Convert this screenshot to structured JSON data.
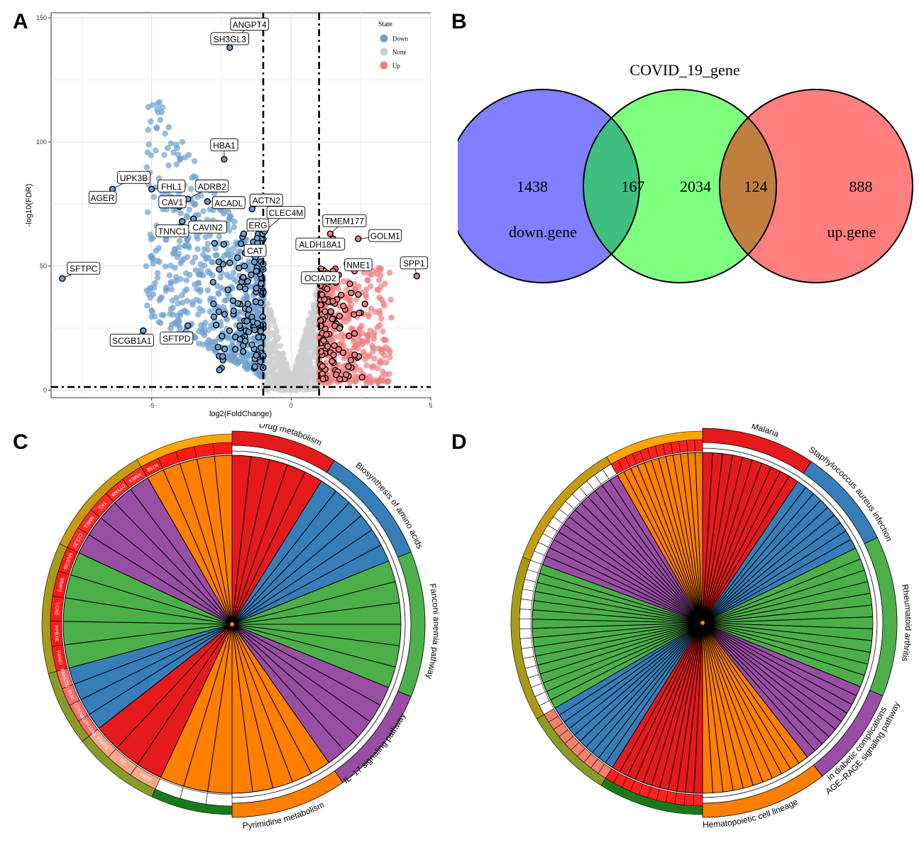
{
  "panel_labels": [
    "A",
    "B",
    "C",
    "D"
  ],
  "chart_data": [
    {
      "type": "scatter",
      "panel": "A",
      "xlabel": "log2(FoldChange)",
      "ylabel": "-log10(FDR)",
      "xlim": [
        -8.6,
        5.0
      ],
      "ylim": [
        -3,
        152
      ],
      "xticks": [
        -5,
        0,
        5
      ],
      "yticks": [
        0,
        50,
        100,
        150
      ],
      "grid": true,
      "thresholds": {
        "x": [
          -1,
          1
        ],
        "y": 1.3
      },
      "legend": {
        "title": "State",
        "position": "top-right",
        "entries": [
          {
            "name": "Down",
            "color": "#6f9fcf"
          },
          {
            "name": "None",
            "color": "#cfcfcf"
          },
          {
            "name": "Up",
            "color": "#ee7f7f"
          }
        ]
      },
      "labeled_genes": [
        {
          "name": "ANGPT4",
          "x": -2.0,
          "y": 141
        },
        {
          "name": "SH3GL3",
          "x": -2.2,
          "y": 138
        },
        {
          "name": "HBA1",
          "x": -2.4,
          "y": 93
        },
        {
          "name": "UPK3B",
          "x": -6.4,
          "y": 81
        },
        {
          "name": "AGER",
          "x": -6.4,
          "y": 81
        },
        {
          "name": "FHL1",
          "x": -5.0,
          "y": 81
        },
        {
          "name": "ADRB2",
          "x": -3.7,
          "y": 77
        },
        {
          "name": "ACTN2",
          "x": -1.4,
          "y": 73
        },
        {
          "name": "ACADL",
          "x": -3.0,
          "y": 76
        },
        {
          "name": "CAV1",
          "x": -4.0,
          "y": 74
        },
        {
          "name": "CLEC4M",
          "x": -0.95,
          "y": 64
        },
        {
          "name": "TNNC1",
          "x": -3.9,
          "y": 68
        },
        {
          "name": "CAVIN2",
          "x": -3.5,
          "y": 69
        },
        {
          "name": "ERG",
          "x": -1.7,
          "y": 63
        },
        {
          "name": "CAT",
          "x": -1.8,
          "y": 59
        },
        {
          "name": "TMEM177",
          "x": 1.4,
          "y": 63
        },
        {
          "name": "GOLM1",
          "x": 2.4,
          "y": 61
        },
        {
          "name": "ALDH18A1",
          "x": 1.5,
          "y": 61
        },
        {
          "name": "NME1",
          "x": 2.0,
          "y": 51
        },
        {
          "name": "OCIAD2",
          "x": 1.5,
          "y": 48
        },
        {
          "name": "SPP1",
          "x": 4.5,
          "y": 46
        },
        {
          "name": "SFTPC",
          "x": -8.2,
          "y": 45
        },
        {
          "name": "SCGB1A1",
          "x": -5.3,
          "y": 24
        },
        {
          "name": "SFTPD",
          "x": -3.7,
          "y": 26
        }
      ]
    },
    {
      "type": "venn",
      "panel": "B",
      "title": "COVID_19_gene",
      "sets": [
        {
          "name": "down.gene",
          "color": "#7f7fff"
        },
        {
          "name": "COVID_19_gene",
          "color": "#7fff7f"
        },
        {
          "name": "up.gene",
          "color": "#ff7f7f"
        }
      ],
      "regions": [
        {
          "label": "1438",
          "sets": [
            "down.gene"
          ]
        },
        {
          "label": "167",
          "sets": [
            "down.gene",
            "COVID_19_gene"
          ]
        },
        {
          "label": "2034",
          "sets": [
            "COVID_19_gene"
          ]
        },
        {
          "label": "124",
          "sets": [
            "COVID_19_gene",
            "up.gene"
          ]
        },
        {
          "label": "888",
          "sets": [
            "up.gene"
          ]
        }
      ],
      "intersection_colors": [
        "#3fbf7f",
        "#bf7f3f"
      ]
    },
    {
      "type": "chord",
      "panel": "C",
      "pathways": [
        {
          "name": "Drug metabolism",
          "color": "#e41a1c"
        },
        {
          "name": "Biosynthesis of amino acids",
          "color": "#377eb8"
        },
        {
          "name": "Fanconi anemia pathway",
          "color": "#4daf4a"
        },
        {
          "name": "IL−17 signaling pathway",
          "color": "#984ea3"
        },
        {
          "name": "Pyrimidine metabolism",
          "color": "#ff7f00"
        }
      ],
      "genes": [
        "NME4",
        "TK1",
        "NME1",
        "PRPF",
        "PC",
        "PSAT1",
        "ALDH18A1",
        "CDKN1",
        "BLM",
        "FANCD2",
        "FANCI",
        "RFBXE",
        "LCN2",
        "MMP3",
        "MUC5B",
        "CCL20",
        "NME1",
        "TK1",
        "DTYMK",
        "NME4",
        "NT5E"
      ]
    },
    {
      "type": "chord",
      "panel": "D",
      "pathways": [
        {
          "name": "Malaria",
          "color": "#e41a1c"
        },
        {
          "name": "Staphylococcus aureus infection",
          "color": "#377eb8"
        },
        {
          "name": "Rheumatoid arthritis",
          "color": "#4daf4a"
        },
        {
          "name": "AGE−RAGE signaling pathway",
          "color": "#984ea3"
        },
        {
          "name": "in diabetic complications",
          "color": "#984ea3"
        },
        {
          "name": "Hematopoietic cell lineage",
          "color": "#ff7f00"
        }
      ]
    }
  ]
}
